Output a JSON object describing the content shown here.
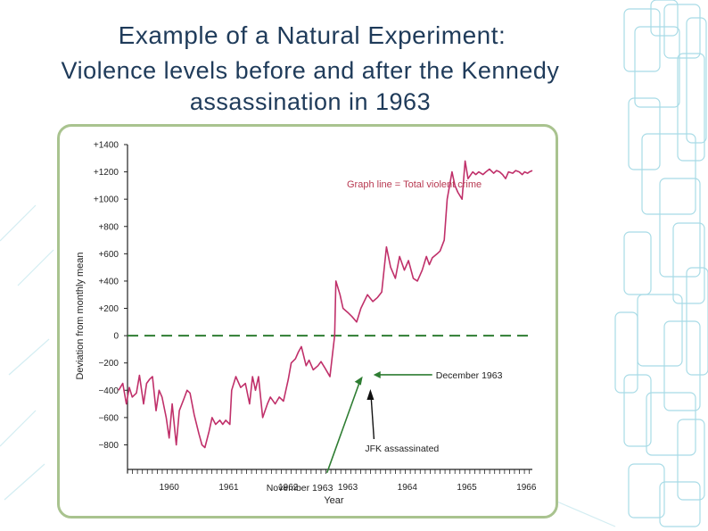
{
  "slide": {
    "title_line1": "Example of a Natural Experiment:",
    "title_line2": "Violence levels before and after the Kennedy",
    "title_line3": "assassination in 1963"
  },
  "colors": {
    "title": "#1f3b5a",
    "series_line": "#c0306a",
    "baseline": "#2e7d32",
    "frame": "#a9c38f",
    "decoration": "#a8dbe6"
  },
  "chart_data": {
    "type": "line",
    "title": "",
    "xlabel": "Year",
    "ylabel": "Deviation from monthly mean",
    "x_ticks": [
      "1960",
      "1961",
      "1962",
      "1963",
      "1964",
      "1965",
      "1966"
    ],
    "y_ticks": [
      "+1400",
      "+1200",
      "+1000",
      "+800",
      "+600",
      "+400",
      "+200",
      "0",
      "−200",
      "−400",
      "−600",
      "−800"
    ],
    "xlim": [
      1959.8,
      1966.6
    ],
    "ylim": [
      -980,
      1400
    ],
    "baseline": {
      "y": 0,
      "style": "dashed"
    },
    "legend_text": "Graph line = Total violent crime",
    "legend_position": "top-right",
    "series": [
      {
        "x": [
          1959.65,
          1959.72,
          1959.78,
          1959.83,
          1959.88,
          1959.95,
          1960.0,
          1960.07,
          1960.12,
          1960.17,
          1960.22,
          1960.28,
          1960.33,
          1960.38,
          1960.45,
          1960.5,
          1960.55,
          1960.62,
          1960.67,
          1960.75,
          1960.8,
          1960.85,
          1960.92,
          1961.0,
          1961.05,
          1961.1,
          1961.17,
          1961.22,
          1961.28,
          1961.35,
          1961.4,
          1961.45,
          1961.52,
          1961.55,
          1961.62,
          1961.7,
          1961.78,
          1961.85,
          1961.9,
          1961.95,
          1962.0,
          1962.07,
          1962.15,
          1962.2,
          1962.28,
          1962.35,
          1962.42,
          1962.5,
          1962.55,
          1962.62,
          1962.67,
          1962.72,
          1962.8,
          1962.85,
          1962.92,
          1963.0,
          1963.05,
          1963.12,
          1963.2,
          1963.28,
          1963.3,
          1963.37,
          1963.42,
          1963.5,
          1963.57,
          1963.65,
          1963.72,
          1963.83,
          1963.92,
          1964.0,
          1964.07,
          1964.15,
          1964.22,
          1964.3,
          1964.37,
          1964.45,
          1964.52,
          1964.6,
          1964.67,
          1964.75,
          1964.82,
          1964.87,
          1964.92,
          1965.0,
          1965.05,
          1965.12,
          1965.17,
          1965.25,
          1965.3,
          1965.35,
          1965.42,
          1965.47,
          1965.52,
          1965.6,
          1965.65,
          1965.7,
          1965.77,
          1965.82,
          1965.88,
          1965.95,
          1966.0,
          1966.05,
          1966.1,
          1966.15,
          1966.2,
          1966.27,
          1966.32,
          1966.38,
          1966.43,
          1966.47,
          1966.52,
          1966.55,
          1966.6
        ],
        "y": [
          -400,
          -350,
          -500,
          -380,
          -450,
          -420,
          -290,
          -500,
          -350,
          -320,
          -300,
          -550,
          -400,
          -450,
          -600,
          -750,
          -500,
          -800,
          -550,
          -460,
          -400,
          -420,
          -580,
          -720,
          -800,
          -820,
          -700,
          -600,
          -650,
          -620,
          -650,
          -620,
          -650,
          -400,
          -300,
          -380,
          -350,
          -500,
          -300,
          -400,
          -300,
          -600,
          -500,
          -450,
          -500,
          -450,
          -480,
          -320,
          -200,
          -170,
          -120,
          -80,
          -220,
          -180,
          -250,
          -220,
          -190,
          -240,
          -300,
          0,
          400,
          300,
          200,
          170,
          140,
          100,
          200,
          300,
          250,
          280,
          320,
          650,
          500,
          420,
          580,
          480,
          550,
          420,
          400,
          480,
          580,
          520,
          570,
          600,
          620,
          700,
          1000,
          1200,
          1100,
          1050,
          1000,
          1280,
          1150,
          1200,
          1180,
          1200,
          1180,
          1200,
          1220,
          1190,
          1210,
          1200,
          1180,
          1150,
          1200,
          1190,
          1210,
          1200,
          1180,
          1200,
          1190,
          1200,
          1210
        ]
      }
    ],
    "annotations": [
      {
        "text": "December 1963",
        "x": 1963.9,
        "y": -280
      },
      {
        "text": "November 1963",
        "x": 1963.6,
        "y": -220
      },
      {
        "text": "JFK assassinated",
        "x": 1963.88,
        "y": -300
      }
    ]
  }
}
